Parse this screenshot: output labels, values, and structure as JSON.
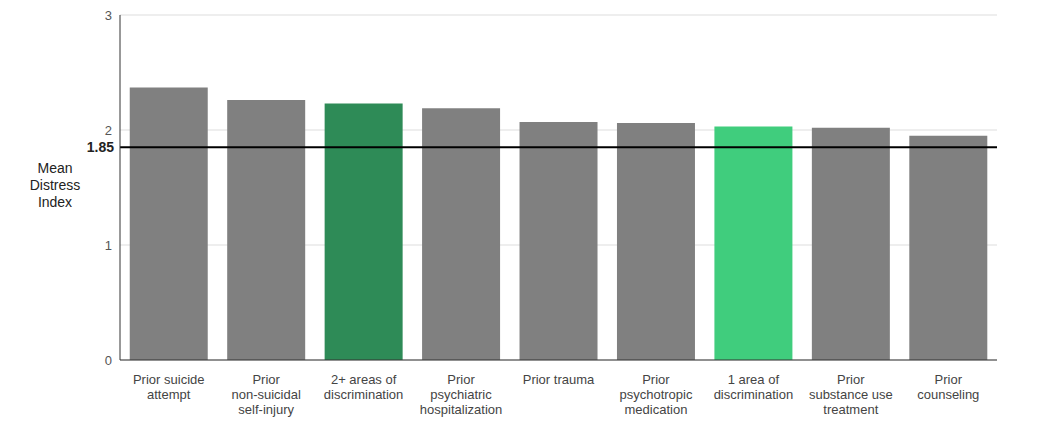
{
  "chart_data": {
    "type": "bar",
    "y_label": "Mean Distress Index",
    "categories": [
      "Prior suicide attempt",
      "Prior non-suicidal self-injury",
      "2+ areas of discrimination",
      "Prior psychiatric hospitalization",
      "Prior trauma",
      "Prior psychotropic medication",
      "1 area of discrimination",
      "Prior substance use treatment",
      "Prior counseling"
    ],
    "values": [
      2.37,
      2.26,
      2.23,
      2.19,
      2.07,
      2.06,
      2.03,
      2.02,
      1.95
    ],
    "colors": [
      "#808080",
      "#808080",
      "#2e8b57",
      "#808080",
      "#808080",
      "#808080",
      "#40cd7d",
      "#808080",
      "#808080"
    ],
    "ylim": [
      0,
      3
    ],
    "yticks": [
      0,
      1,
      2,
      3
    ],
    "grid": true,
    "reference_line": {
      "value": 1.85,
      "label": "1.85"
    }
  }
}
